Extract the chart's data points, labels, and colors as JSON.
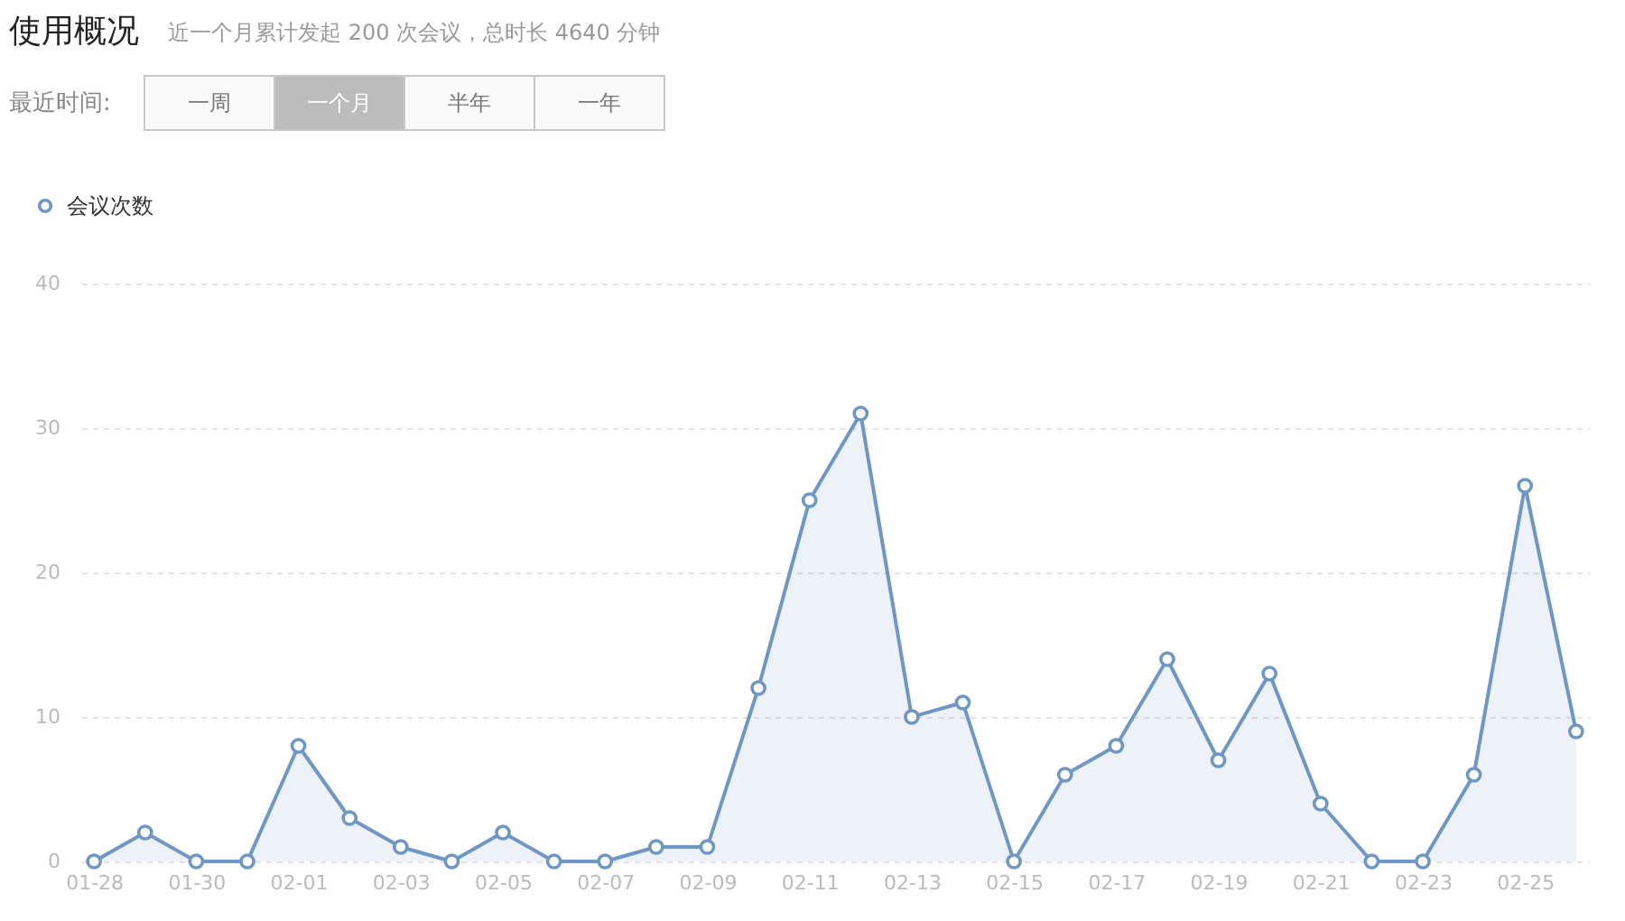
{
  "chart_data": {
    "type": "area",
    "title": "使用概况",
    "subtitle": "近一个月累计发起 200 次会议，总时长 4640 分钟",
    "annotations": [
      "最近时间:",
      "一周",
      "一个月",
      "半年",
      "一年"
    ],
    "categories": [
      "01-28",
      null,
      "01-30",
      null,
      "02-01",
      null,
      "02-03",
      null,
      "02-05",
      null,
      "02-07",
      null,
      "02-09",
      null,
      "02-11",
      null,
      "02-13",
      null,
      "02-15",
      null,
      "02-17",
      null,
      "02-19",
      null,
      "02-21",
      null,
      "02-23",
      null,
      "02-25",
      null
    ],
    "series": [
      {
        "name": "会议次数",
        "color": "#6f97c6",
        "values": [
          0,
          2,
          0,
          0,
          8,
          3,
          1,
          0,
          2,
          0,
          0,
          1,
          1,
          12,
          25,
          31,
          10,
          11,
          0,
          6,
          8,
          14,
          7,
          13,
          4,
          0,
          0,
          6,
          26,
          9
        ]
      }
    ],
    "ylim": [
      0,
      40
    ],
    "yticks": [
      0,
      10,
      20,
      30,
      40
    ],
    "grid": "y",
    "legend": "top left",
    "marker": "circle",
    "line_style": "solid"
  }
}
